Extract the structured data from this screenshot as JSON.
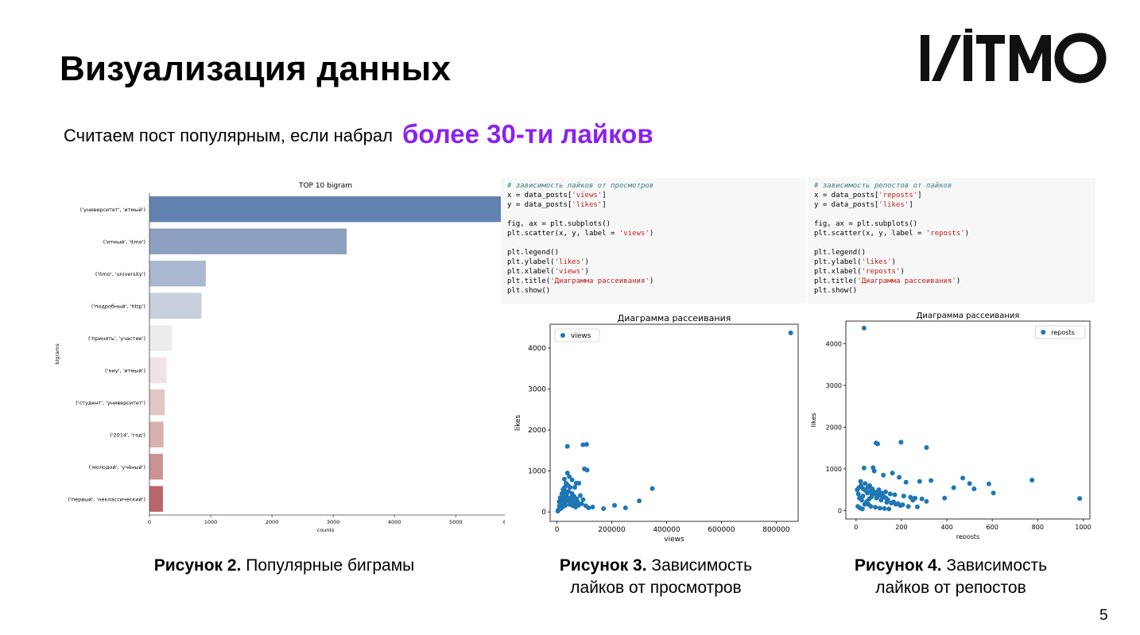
{
  "slide": {
    "title": "Визуализация данных",
    "subtitle_plain": "Считаем пост популярным, если набрал",
    "subtitle_highlight": "более 30-ти лайков",
    "highlight_color": "#8b22f0",
    "page_number": "5",
    "logo_text": "ITMO"
  },
  "code_blocks": [
    {
      "lines": [
        "# зависимость лайков от просмотров",
        "x = data_posts['views']",
        "y = data_posts['likes']",
        "",
        "fig, ax = plt.subplots()",
        "plt.scatter(x, y, label = 'views')",
        "",
        "plt.legend()",
        "plt.ylabel('likes')",
        "plt.xlabel('views')",
        "plt.title('Диаграмма рассеивания')",
        "plt.show()"
      ]
    },
    {
      "lines": [
        "# зависимость репостов от лайков",
        "x = data_posts['reposts']",
        "y = data_posts['likes']",
        "",
        "fig, ax = plt.subplots()",
        "plt.scatter(x, y, label = 'reposts')",
        "",
        "plt.legend()",
        "plt.ylabel('likes')",
        "plt.xlabel('reposts')",
        "plt.title('Диаграмма рассеивания')",
        "plt.show()"
      ]
    }
  ],
  "captions": [
    {
      "bold": "Рисунок 2.",
      "line1": "Популярные биграмы",
      "line2": ""
    },
    {
      "bold": "Рисунок 3.",
      "line1": "Зависимость",
      "line2": "лайков от просмотров"
    },
    {
      "bold": "Рисунок 4.",
      "line1": "Зависимость",
      "line2": "лайков от репостов"
    }
  ],
  "chart_data": [
    {
      "type": "bar",
      "orientation": "horizontal",
      "title": "TOP 10 bigram",
      "xlabel": "counts",
      "ylabel": "bigrams",
      "categories": [
        "('университет', 'итмый')",
        "('итмый', 'itmo')",
        "('itmo', 'university')",
        "('подробный', 'http')",
        "('принять', 'участие')",
        "('ниу', 'итмый')",
        "('студент', 'университет')",
        "('2014', 'год')",
        "('молодой', 'учёный')",
        "('первый', 'неклассический')"
      ],
      "values": [
        5750,
        3220,
        920,
        850,
        370,
        280,
        250,
        230,
        220,
        220
      ],
      "colors": [
        "#6182b1",
        "#8ca0c1",
        "#aab8d0",
        "#c9cfdd",
        "#ededee",
        "#f1e3e4",
        "#e3c6c7",
        "#d9b0b1",
        "#cc9294",
        "#b96669"
      ],
      "xlim": [
        0,
        5750
      ],
      "xticks": [
        0,
        1000,
        2000,
        3000,
        4000,
        5000
      ],
      "xtick_labels": [
        "0",
        "1000",
        "2000",
        "3000",
        "4000",
        "5000"
      ],
      "clipped_tick_label": "6"
    },
    {
      "type": "scatter",
      "title": "Диаграмма рассеивания",
      "xlabel": "views",
      "ylabel": "likes",
      "legend": "views",
      "legend_position": "upper-left",
      "color": "#1f77b4",
      "xlim": [
        -25000,
        880000
      ],
      "ylim": [
        -230,
        4580
      ],
      "xticks": [
        0,
        200000,
        400000,
        600000,
        800000
      ],
      "xtick_labels": [
        "0",
        "200000",
        "400000",
        "600000",
        "800000"
      ],
      "yticks": [
        0,
        1000,
        2000,
        3000,
        4000
      ],
      "ytick_labels": [
        "0",
        "1000",
        "2000",
        "3000",
        "4000"
      ],
      "points": [
        [
          853000,
          4370
        ],
        [
          38000,
          1600
        ],
        [
          95000,
          1640
        ],
        [
          108000,
          1650
        ],
        [
          100000,
          1050
        ],
        [
          110000,
          1020
        ],
        [
          38000,
          950
        ],
        [
          348000,
          570
        ],
        [
          300000,
          270
        ],
        [
          210000,
          160
        ],
        [
          250000,
          100
        ],
        [
          170000,
          80
        ],
        [
          130000,
          120
        ],
        [
          70000,
          700
        ],
        [
          80000,
          700
        ],
        [
          55000,
          780
        ],
        [
          45000,
          860
        ],
        [
          65000,
          600
        ],
        [
          40000,
          650
        ],
        [
          30000,
          500
        ],
        [
          25000,
          400
        ],
        [
          20000,
          300
        ],
        [
          15000,
          200
        ],
        [
          10000,
          100
        ],
        [
          5000,
          50
        ],
        [
          35000,
          420
        ],
        [
          50000,
          350
        ],
        [
          60000,
          300
        ],
        [
          75000,
          250
        ],
        [
          90000,
          200
        ],
        [
          28000,
          600
        ],
        [
          22000,
          550
        ],
        [
          18000,
          450
        ],
        [
          12000,
          350
        ],
        [
          8000,
          250
        ],
        [
          42000,
          500
        ],
        [
          48000,
          600
        ],
        [
          33000,
          700
        ],
        [
          27000,
          800
        ],
        [
          55000,
          450
        ],
        [
          62000,
          380
        ],
        [
          85000,
          400
        ],
        [
          95000,
          300
        ],
        [
          105000,
          150
        ],
        [
          115000,
          100
        ],
        [
          3000,
          20
        ],
        [
          6000,
          60
        ],
        [
          9000,
          150
        ],
        [
          14000,
          80
        ],
        [
          17000,
          180
        ],
        [
          21000,
          120
        ],
        [
          24000,
          220
        ],
        [
          26000,
          320
        ],
        [
          31000,
          160
        ],
        [
          36000,
          260
        ],
        [
          39000,
          340
        ],
        [
          44000,
          280
        ],
        [
          47000,
          180
        ],
        [
          52000,
          240
        ],
        [
          58000,
          150
        ],
        [
          64000,
          200
        ],
        [
          68000,
          120
        ],
        [
          72000,
          320
        ],
        [
          78000,
          160
        ]
      ]
    },
    {
      "type": "scatter",
      "title": "Диаграмма рассеивания",
      "xlabel": "reposts",
      "ylabel": "likes",
      "legend": "reposts",
      "legend_position": "upper-right",
      "color": "#1f77b4",
      "xlim": [
        -45,
        1030
      ],
      "ylim": [
        -200,
        4540
      ],
      "xticks": [
        0,
        200,
        400,
        600,
        800,
        1000
      ],
      "xtick_labels": [
        "0",
        "200",
        "400",
        "600",
        "800",
        "1000"
      ],
      "yticks": [
        0,
        1000,
        2000,
        3000,
        4000
      ],
      "ytick_labels": [
        "0",
        "1000",
        "2000",
        "3000",
        "4000"
      ],
      "points": [
        [
          35,
          4370
        ],
        [
          88,
          1620
        ],
        [
          95,
          1600
        ],
        [
          198,
          1640
        ],
        [
          310,
          1510
        ],
        [
          35,
          1020
        ],
        [
          75,
          1030
        ],
        [
          80,
          950
        ],
        [
          120,
          850
        ],
        [
          190,
          800
        ],
        [
          160,
          900
        ],
        [
          220,
          680
        ],
        [
          280,
          700
        ],
        [
          330,
          720
        ],
        [
          470,
          780
        ],
        [
          500,
          650
        ],
        [
          585,
          640
        ],
        [
          605,
          420
        ],
        [
          520,
          520
        ],
        [
          430,
          550
        ],
        [
          390,
          300
        ],
        [
          310,
          220
        ],
        [
          250,
          250
        ],
        [
          775,
          730
        ],
        [
          985,
          290
        ],
        [
          20,
          700
        ],
        [
          40,
          650
        ],
        [
          60,
          600
        ],
        [
          100,
          500
        ],
        [
          130,
          450
        ],
        [
          150,
          400
        ],
        [
          170,
          380
        ],
        [
          210,
          350
        ],
        [
          240,
          320
        ],
        [
          260,
          300
        ],
        [
          290,
          280
        ],
        [
          15,
          300
        ],
        [
          25,
          250
        ],
        [
          45,
          200
        ],
        [
          55,
          150
        ],
        [
          65,
          100
        ],
        [
          85,
          80
        ],
        [
          105,
          60
        ],
        [
          125,
          50
        ],
        [
          145,
          40
        ],
        [
          5,
          500
        ],
        [
          10,
          400
        ],
        [
          30,
          350
        ],
        [
          50,
          420
        ],
        [
          70,
          380
        ],
        [
          90,
          300
        ],
        [
          110,
          250
        ],
        [
          135,
          200
        ],
        [
          155,
          180
        ],
        [
          175,
          150
        ],
        [
          195,
          120
        ],
        [
          230,
          100
        ],
        [
          270,
          90
        ],
        [
          8,
          100
        ],
        [
          18,
          60
        ],
        [
          28,
          40
        ],
        [
          38,
          150
        ],
        [
          48,
          220
        ],
        [
          58,
          280
        ],
        [
          68,
          330
        ],
        [
          78,
          450
        ],
        [
          98,
          380
        ],
        [
          118,
          320
        ],
        [
          140,
          260
        ],
        [
          165,
          210
        ],
        [
          185,
          170
        ],
        [
          205,
          140
        ],
        [
          12,
          550
        ],
        [
          22,
          600
        ],
        [
          32,
          520
        ],
        [
          42,
          480
        ],
        [
          52,
          560
        ],
        [
          62,
          460
        ],
        [
          72,
          520
        ],
        [
          82,
          400
        ],
        [
          92,
          440
        ],
        [
          102,
          360
        ],
        [
          112,
          420
        ],
        [
          122,
          340
        ],
        [
          132,
          300
        ]
      ]
    }
  ]
}
